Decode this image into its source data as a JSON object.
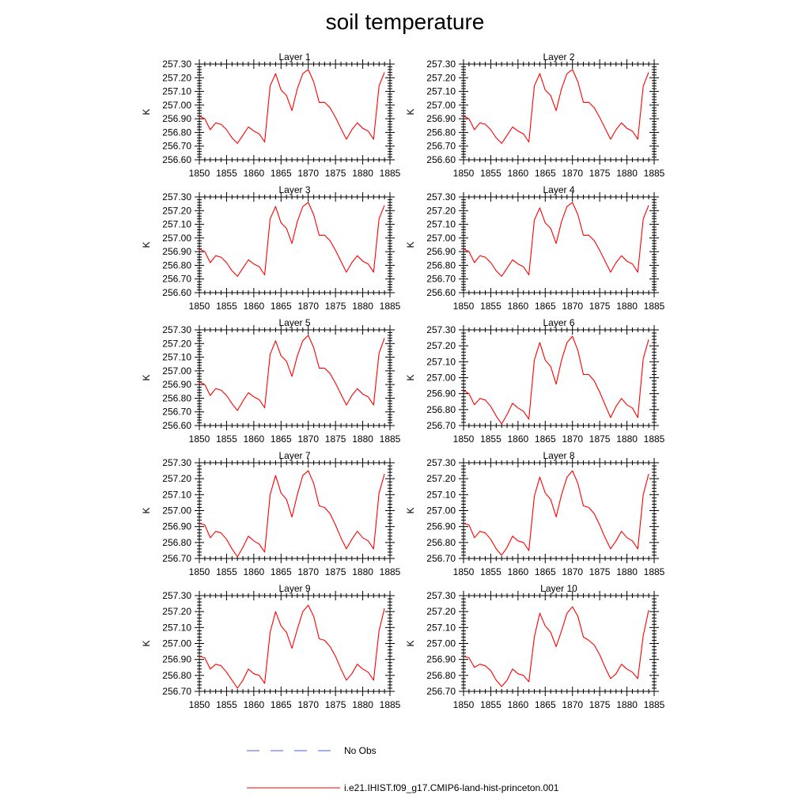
{
  "title": "soil temperature",
  "legend": {
    "items": [
      {
        "label": "No Obs",
        "style": "dashed",
        "color": "#4a5fc8"
      },
      {
        "label": "i.e21.IHIST.f09_g17.CMIP6-land-hist-princeton.001",
        "style": "solid",
        "color": "#ff0000"
      }
    ]
  },
  "chart_data": [
    {
      "type": "line",
      "title": "Layer 1",
      "ylabel": "K",
      "xlim": [
        1850,
        1885
      ],
      "ylim": [
        256.6,
        257.3
      ],
      "xticks": [
        "1850",
        "1855",
        "1860",
        "1865",
        "1870",
        "1875",
        "1880",
        "1885"
      ],
      "yticks": [
        "256.60",
        "256.70",
        "256.80",
        "256.90",
        "257.00",
        "257.10",
        "257.20",
        "257.30"
      ],
      "x": [
        1850,
        1851,
        1852,
        1853,
        1854,
        1855,
        1856,
        1857,
        1858,
        1859,
        1860,
        1861,
        1862,
        1863,
        1864,
        1865,
        1866,
        1867,
        1868,
        1869,
        1870,
        1871,
        1872,
        1873,
        1874,
        1875,
        1876,
        1877,
        1878,
        1879,
        1880,
        1881,
        1882,
        1883,
        1884
      ],
      "series": [
        {
          "color": "#ff0000",
          "values": [
            256.92,
            256.9,
            256.82,
            256.87,
            256.86,
            256.82,
            256.76,
            256.72,
            256.78,
            256.84,
            256.81,
            256.79,
            256.73,
            257.14,
            257.23,
            257.11,
            257.07,
            256.96,
            257.12,
            257.23,
            257.26,
            257.17,
            257.02,
            257.02,
            256.98,
            256.91,
            256.83,
            256.75,
            256.82,
            256.87,
            256.83,
            256.81,
            256.75,
            257.14,
            257.24
          ]
        }
      ]
    },
    {
      "type": "line",
      "title": "Layer 2",
      "ylabel": "K",
      "xlim": [
        1850,
        1885
      ],
      "ylim": [
        256.6,
        257.3
      ],
      "xticks": [
        "1850",
        "1855",
        "1860",
        "1865",
        "1870",
        "1875",
        "1880",
        "1885"
      ],
      "yticks": [
        "256.60",
        "256.70",
        "256.80",
        "256.90",
        "257.00",
        "257.10",
        "257.20",
        "257.30"
      ],
      "x": [
        1850,
        1851,
        1852,
        1853,
        1854,
        1855,
        1856,
        1857,
        1858,
        1859,
        1860,
        1861,
        1862,
        1863,
        1864,
        1865,
        1866,
        1867,
        1868,
        1869,
        1870,
        1871,
        1872,
        1873,
        1874,
        1875,
        1876,
        1877,
        1878,
        1879,
        1880,
        1881,
        1882,
        1883,
        1884
      ],
      "series": [
        {
          "color": "#ff0000",
          "values": [
            256.92,
            256.9,
            256.82,
            256.87,
            256.86,
            256.82,
            256.76,
            256.72,
            256.78,
            256.84,
            256.81,
            256.79,
            256.73,
            257.14,
            257.23,
            257.11,
            257.07,
            256.96,
            257.12,
            257.23,
            257.26,
            257.17,
            257.02,
            257.02,
            256.98,
            256.91,
            256.83,
            256.75,
            256.82,
            256.87,
            256.83,
            256.81,
            256.75,
            257.14,
            257.24
          ]
        }
      ]
    },
    {
      "type": "line",
      "title": "Layer 3",
      "ylabel": "K",
      "xlim": [
        1850,
        1885
      ],
      "ylim": [
        256.6,
        257.3
      ],
      "xticks": [
        "1850",
        "1855",
        "1860",
        "1865",
        "1870",
        "1875",
        "1880",
        "1885"
      ],
      "yticks": [
        "256.60",
        "256.70",
        "256.80",
        "256.90",
        "257.00",
        "257.10",
        "257.20",
        "257.30"
      ],
      "x": [
        1850,
        1851,
        1852,
        1853,
        1854,
        1855,
        1856,
        1857,
        1858,
        1859,
        1860,
        1861,
        1862,
        1863,
        1864,
        1865,
        1866,
        1867,
        1868,
        1869,
        1870,
        1871,
        1872,
        1873,
        1874,
        1875,
        1876,
        1877,
        1878,
        1879,
        1880,
        1881,
        1882,
        1883,
        1884
      ],
      "series": [
        {
          "color": "#ff0000",
          "values": [
            256.92,
            256.9,
            256.82,
            256.87,
            256.86,
            256.82,
            256.76,
            256.72,
            256.78,
            256.84,
            256.81,
            256.79,
            256.73,
            257.14,
            257.23,
            257.11,
            257.07,
            256.96,
            257.12,
            257.23,
            257.26,
            257.17,
            257.02,
            257.02,
            256.98,
            256.91,
            256.83,
            256.75,
            256.82,
            256.87,
            256.83,
            256.81,
            256.75,
            257.14,
            257.24
          ]
        }
      ]
    },
    {
      "type": "line",
      "title": "Layer 4",
      "ylabel": "K",
      "xlim": [
        1850,
        1885
      ],
      "ylim": [
        256.6,
        257.3
      ],
      "xticks": [
        "1850",
        "1855",
        "1860",
        "1865",
        "1870",
        "1875",
        "1880",
        "1885"
      ],
      "yticks": [
        "256.60",
        "256.70",
        "256.80",
        "256.90",
        "257.00",
        "257.10",
        "257.20",
        "257.30"
      ],
      "x": [
        1850,
        1851,
        1852,
        1853,
        1854,
        1855,
        1856,
        1857,
        1858,
        1859,
        1860,
        1861,
        1862,
        1863,
        1864,
        1865,
        1866,
        1867,
        1868,
        1869,
        1870,
        1871,
        1872,
        1873,
        1874,
        1875,
        1876,
        1877,
        1878,
        1879,
        1880,
        1881,
        1882,
        1883,
        1884
      ],
      "series": [
        {
          "color": "#ff0000",
          "values": [
            256.92,
            256.9,
            256.82,
            256.87,
            256.86,
            256.82,
            256.76,
            256.72,
            256.78,
            256.84,
            256.81,
            256.79,
            256.73,
            257.13,
            257.22,
            257.11,
            257.07,
            256.96,
            257.12,
            257.23,
            257.26,
            257.17,
            257.02,
            257.02,
            256.98,
            256.91,
            256.83,
            256.75,
            256.82,
            256.87,
            256.83,
            256.81,
            256.75,
            257.14,
            257.24
          ]
        }
      ]
    },
    {
      "type": "line",
      "title": "Layer 5",
      "ylabel": "K",
      "xlim": [
        1850,
        1885
      ],
      "ylim": [
        256.6,
        257.3
      ],
      "xticks": [
        "1850",
        "1855",
        "1860",
        "1865",
        "1870",
        "1875",
        "1880",
        "1885"
      ],
      "yticks": [
        "256.60",
        "256.70",
        "256.80",
        "256.90",
        "257.00",
        "257.10",
        "257.20",
        "257.30"
      ],
      "x": [
        1850,
        1851,
        1852,
        1853,
        1854,
        1855,
        1856,
        1857,
        1858,
        1859,
        1860,
        1861,
        1862,
        1863,
        1864,
        1865,
        1866,
        1867,
        1868,
        1869,
        1870,
        1871,
        1872,
        1873,
        1874,
        1875,
        1876,
        1877,
        1878,
        1879,
        1880,
        1881,
        1882,
        1883,
        1884
      ],
      "series": [
        {
          "color": "#ff0000",
          "values": [
            256.92,
            256.9,
            256.82,
            256.87,
            256.86,
            256.82,
            256.76,
            256.71,
            256.78,
            256.84,
            256.81,
            256.79,
            256.73,
            257.12,
            257.22,
            257.11,
            257.07,
            256.96,
            257.11,
            257.22,
            257.26,
            257.17,
            257.02,
            257.02,
            256.98,
            256.91,
            256.83,
            256.75,
            256.82,
            256.87,
            256.83,
            256.81,
            256.75,
            257.13,
            257.24
          ]
        }
      ]
    },
    {
      "type": "line",
      "title": "Layer 6",
      "ylabel": "K",
      "xlim": [
        1850,
        1885
      ],
      "ylim": [
        256.7,
        257.3
      ],
      "xticks": [
        "1850",
        "1855",
        "1860",
        "1865",
        "1870",
        "1875",
        "1880",
        "1885"
      ],
      "yticks": [
        "256.70",
        "256.80",
        "256.90",
        "257.00",
        "257.10",
        "257.20",
        "257.30"
      ],
      "x": [
        1850,
        1851,
        1852,
        1853,
        1854,
        1855,
        1856,
        1857,
        1858,
        1859,
        1860,
        1861,
        1862,
        1863,
        1864,
        1865,
        1866,
        1867,
        1868,
        1869,
        1870,
        1871,
        1872,
        1873,
        1874,
        1875,
        1876,
        1877,
        1878,
        1879,
        1880,
        1881,
        1882,
        1883,
        1884
      ],
      "series": [
        {
          "color": "#ff0000",
          "values": [
            256.92,
            256.9,
            256.83,
            256.87,
            256.86,
            256.82,
            256.76,
            256.71,
            256.77,
            256.84,
            256.81,
            256.79,
            256.74,
            257.11,
            257.22,
            257.11,
            257.07,
            256.96,
            257.11,
            257.22,
            257.26,
            257.17,
            257.02,
            257.02,
            256.98,
            256.91,
            256.83,
            256.75,
            256.82,
            256.87,
            256.83,
            256.81,
            256.75,
            257.12,
            257.24
          ]
        }
      ]
    },
    {
      "type": "line",
      "title": "Layer 7",
      "ylabel": "K",
      "xlim": [
        1850,
        1885
      ],
      "ylim": [
        256.7,
        257.3
      ],
      "xticks": [
        "1850",
        "1855",
        "1860",
        "1865",
        "1870",
        "1875",
        "1880",
        "1885"
      ],
      "yticks": [
        "256.70",
        "256.80",
        "256.90",
        "257.00",
        "257.10",
        "257.20",
        "257.30"
      ],
      "x": [
        1850,
        1851,
        1852,
        1853,
        1854,
        1855,
        1856,
        1857,
        1858,
        1859,
        1860,
        1861,
        1862,
        1863,
        1864,
        1865,
        1866,
        1867,
        1868,
        1869,
        1870,
        1871,
        1872,
        1873,
        1874,
        1875,
        1876,
        1877,
        1878,
        1879,
        1880,
        1881,
        1882,
        1883,
        1884
      ],
      "series": [
        {
          "color": "#ff0000",
          "values": [
            256.92,
            256.91,
            256.83,
            256.87,
            256.86,
            256.82,
            256.76,
            256.71,
            256.77,
            256.84,
            256.81,
            256.79,
            256.74,
            257.1,
            257.22,
            257.11,
            257.07,
            256.96,
            257.1,
            257.22,
            257.25,
            257.17,
            257.03,
            257.02,
            256.98,
            256.91,
            256.83,
            256.76,
            256.82,
            256.87,
            256.83,
            256.81,
            256.76,
            257.11,
            257.23
          ]
        }
      ]
    },
    {
      "type": "line",
      "title": "Layer 8",
      "ylabel": "K",
      "xlim": [
        1850,
        1885
      ],
      "ylim": [
        256.7,
        257.3
      ],
      "xticks": [
        "1850",
        "1855",
        "1860",
        "1865",
        "1870",
        "1875",
        "1880",
        "1885"
      ],
      "yticks": [
        "256.70",
        "256.80",
        "256.90",
        "257.00",
        "257.10",
        "257.20",
        "257.30"
      ],
      "x": [
        1850,
        1851,
        1852,
        1853,
        1854,
        1855,
        1856,
        1857,
        1858,
        1859,
        1860,
        1861,
        1862,
        1863,
        1864,
        1865,
        1866,
        1867,
        1868,
        1869,
        1870,
        1871,
        1872,
        1873,
        1874,
        1875,
        1876,
        1877,
        1878,
        1879,
        1880,
        1881,
        1882,
        1883,
        1884
      ],
      "series": [
        {
          "color": "#ff0000",
          "values": [
            256.92,
            256.91,
            256.83,
            256.87,
            256.86,
            256.82,
            256.76,
            256.72,
            256.77,
            256.84,
            256.81,
            256.8,
            256.75,
            257.09,
            257.21,
            257.11,
            257.07,
            256.96,
            257.1,
            257.21,
            257.25,
            257.17,
            257.03,
            257.02,
            256.98,
            256.91,
            256.83,
            256.76,
            256.81,
            256.87,
            256.83,
            256.81,
            256.76,
            257.1,
            257.23
          ]
        }
      ]
    },
    {
      "type": "line",
      "title": "Layer 9",
      "ylabel": "K",
      "xlim": [
        1850,
        1885
      ],
      "ylim": [
        256.7,
        257.3
      ],
      "xticks": [
        "1850",
        "1855",
        "1860",
        "1865",
        "1870",
        "1875",
        "1880",
        "1885"
      ],
      "yticks": [
        "256.70",
        "256.80",
        "256.90",
        "257.00",
        "257.10",
        "257.20",
        "257.30"
      ],
      "x": [
        1850,
        1851,
        1852,
        1853,
        1854,
        1855,
        1856,
        1857,
        1858,
        1859,
        1860,
        1861,
        1862,
        1863,
        1864,
        1865,
        1866,
        1867,
        1868,
        1869,
        1870,
        1871,
        1872,
        1873,
        1874,
        1875,
        1876,
        1877,
        1878,
        1879,
        1880,
        1881,
        1882,
        1883,
        1884
      ],
      "series": [
        {
          "color": "#ff0000",
          "values": [
            256.92,
            256.91,
            256.84,
            256.87,
            256.86,
            256.82,
            256.77,
            256.72,
            256.77,
            256.84,
            256.81,
            256.8,
            256.75,
            257.07,
            257.2,
            257.11,
            257.07,
            256.97,
            257.09,
            257.2,
            257.24,
            257.17,
            257.03,
            257.02,
            256.98,
            256.92,
            256.84,
            256.77,
            256.81,
            256.87,
            256.84,
            256.82,
            256.77,
            257.08,
            257.22
          ]
        }
      ]
    },
    {
      "type": "line",
      "title": "Layer 10",
      "ylabel": "K",
      "xlim": [
        1850,
        1885
      ],
      "ylim": [
        256.7,
        257.3
      ],
      "xticks": [
        "1850",
        "1855",
        "1860",
        "1865",
        "1870",
        "1875",
        "1880",
        "1885"
      ],
      "yticks": [
        "256.70",
        "256.80",
        "256.90",
        "257.00",
        "257.10",
        "257.20",
        "257.30"
      ],
      "x": [
        1850,
        1851,
        1852,
        1853,
        1854,
        1855,
        1856,
        1857,
        1858,
        1859,
        1860,
        1861,
        1862,
        1863,
        1864,
        1865,
        1866,
        1867,
        1868,
        1869,
        1870,
        1871,
        1872,
        1873,
        1874,
        1875,
        1876,
        1877,
        1878,
        1879,
        1880,
        1881,
        1882,
        1883,
        1884
      ],
      "series": [
        {
          "color": "#ff0000",
          "values": [
            256.92,
            256.91,
            256.85,
            256.87,
            256.86,
            256.83,
            256.77,
            256.73,
            256.77,
            256.84,
            256.81,
            256.8,
            256.76,
            257.04,
            257.19,
            257.11,
            257.07,
            256.98,
            257.08,
            257.19,
            257.23,
            257.17,
            257.04,
            257.02,
            256.99,
            256.93,
            256.85,
            256.78,
            256.81,
            256.87,
            256.84,
            256.82,
            256.78,
            257.05,
            257.21
          ]
        }
      ]
    }
  ]
}
